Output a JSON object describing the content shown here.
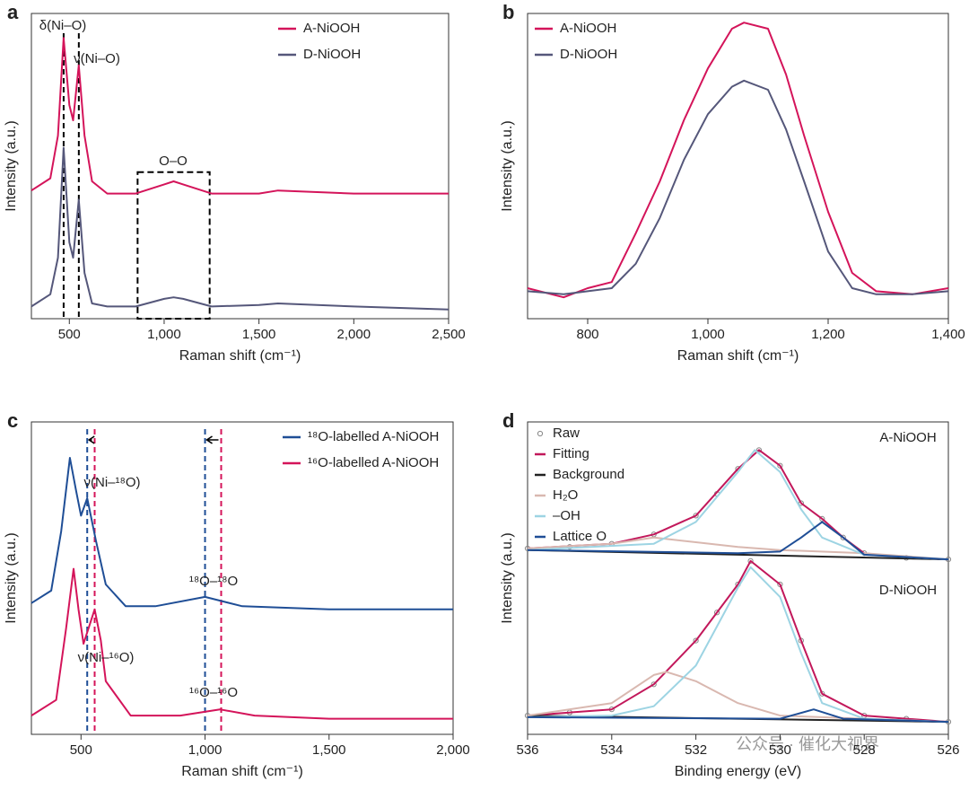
{
  "chart_data": [
    {
      "type": "line",
      "panel": "a",
      "x_label": "Raman shift (cm⁻¹)",
      "y_label": "Intensity (a.u.)",
      "xlim": [
        300,
        2500
      ],
      "xticks": [
        500,
        {
          "value": 1000,
          "label": "1,000"
        },
        {
          "value": 1500,
          "label": "1,500"
        },
        {
          "value": 2000,
          "label": "2,000"
        },
        {
          "value": 2500,
          "label": "2,500"
        }
      ],
      "ylim": [
        0,
        100
      ],
      "legend": "upper right",
      "annotations": [
        "δ(Ni–O)",
        "ν(Ni–O)",
        "O–O"
      ],
      "ref_lines": [
        {
          "x": 470,
          "color": "#000000"
        },
        {
          "x": 550,
          "color": "#000000"
        }
      ],
      "box_xlim": [
        860,
        1240
      ],
      "box_ylim": [
        0,
        48
      ],
      "series": [
        {
          "name": "A-NiOOH",
          "color": "#d4145a",
          "x": [
            300,
            400,
            440,
            470,
            500,
            520,
            550,
            580,
            620,
            700,
            850,
            1000,
            1050,
            1100,
            1250,
            1500,
            1600,
            2000,
            2500
          ],
          "values": [
            42,
            46,
            60,
            92,
            70,
            65,
            83,
            60,
            45,
            41,
            41,
            44,
            45,
            44,
            41,
            41,
            42,
            41,
            41
          ]
        },
        {
          "name": "D-NiOOH",
          "color": "#55577a",
          "x": [
            300,
            400,
            440,
            470,
            500,
            520,
            550,
            580,
            620,
            700,
            850,
            1000,
            1050,
            1100,
            1250,
            1500,
            1600,
            2000,
            2500
          ],
          "values": [
            4,
            8,
            20,
            56,
            25,
            20,
            39,
            15,
            5,
            4,
            4,
            6.5,
            7,
            6.5,
            4,
            4.5,
            5,
            4,
            3
          ]
        }
      ]
    },
    {
      "type": "line",
      "panel": "b",
      "x_label": "Raman shift (cm⁻¹)",
      "y_label": "Intensity (a.u.)",
      "xlim": [
        700,
        1400
      ],
      "xticks": [
        800,
        {
          "value": 1000,
          "label": "1,000"
        },
        {
          "value": 1200,
          "label": "1,200"
        },
        {
          "value": 1400,
          "label": "1,400"
        }
      ],
      "ylim": [
        0,
        100
      ],
      "legend": "upper left",
      "series": [
        {
          "name": "A-NiOOH",
          "color": "#d4145a",
          "x": [
            700,
            760,
            800,
            840,
            880,
            920,
            960,
            1000,
            1040,
            1060,
            1100,
            1130,
            1160,
            1200,
            1240,
            1280,
            1340,
            1400
          ],
          "values": [
            10,
            7,
            10,
            12,
            28,
            45,
            65,
            82,
            95,
            97,
            95,
            80,
            60,
            35,
            15,
            9,
            8,
            10
          ]
        },
        {
          "name": "D-NiOOH",
          "color": "#55577a",
          "x": [
            700,
            760,
            800,
            840,
            880,
            920,
            960,
            1000,
            1040,
            1060,
            1100,
            1130,
            1160,
            1200,
            1240,
            1280,
            1340,
            1400
          ],
          "values": [
            9,
            8,
            9,
            10,
            18,
            33,
            52,
            67,
            76,
            78,
            75,
            62,
            45,
            22,
            10,
            8,
            8,
            9
          ]
        }
      ]
    },
    {
      "type": "line",
      "panel": "c",
      "x_label": "Raman shift (cm⁻¹)",
      "y_label": "Intensity (a.u.)",
      "xlim": [
        300,
        2000
      ],
      "xticks": [
        500,
        {
          "value": 1000,
          "label": "1,000"
        },
        {
          "value": 1500,
          "label": "1,500"
        },
        {
          "value": 2000,
          "label": "2,000"
        }
      ],
      "ylim": [
        0,
        100
      ],
      "legend": "upper right",
      "annotations": [
        "ν(Ni–¹⁸O)",
        "¹⁸O–¹⁸O",
        "ν(Ni–¹⁶O)",
        "¹⁶O–¹⁶O"
      ],
      "ref_lines": [
        {
          "x": 525,
          "color": "#1f4e96"
        },
        {
          "x": 555,
          "color": "#d4145a"
        },
        {
          "x": 1000,
          "color": "#1f4e96"
        },
        {
          "x": 1065,
          "color": "#d4145a"
        }
      ],
      "series": [
        {
          "name": "¹⁸O-labelled A-NiOOH",
          "color": "#1f4e96",
          "x": [
            300,
            380,
            420,
            455,
            480,
            500,
            525,
            560,
            600,
            680,
            800,
            1000,
            1150,
            1500,
            2000
          ],
          "values": [
            42,
            46,
            65,
            88.5,
            78,
            70,
            75.6,
            62,
            48,
            41,
            41,
            44,
            41,
            40,
            40
          ]
        },
        {
          "name": "¹⁶O-labelled A-NiOOH",
          "color": "#d4145a",
          "x": [
            300,
            400,
            440,
            470,
            490,
            510,
            555,
            580,
            600,
            700,
            900,
            1060,
            1200,
            1500,
            2000
          ],
          "values": [
            6,
            11,
            34,
            53,
            40,
            29,
            40,
            30,
            17,
            6,
            6,
            8,
            6,
            5,
            5
          ]
        }
      ]
    },
    {
      "type": "line",
      "panel": "d",
      "x_label": "Binding energy (eV)",
      "y_label": "Intensity (a.u.)",
      "xlim": [
        536,
        526
      ],
      "xticks": [
        536,
        534,
        532,
        530,
        528,
        526
      ],
      "ylim": [
        0,
        100
      ],
      "legend": "upper left",
      "annotations": [
        "A-NiOOH",
        "D-NiOOH"
      ],
      "series": [
        {
          "name": "Raw",
          "color": "#888888",
          "style": "markers",
          "x": [
            536,
            535,
            534,
            533,
            532,
            531.5,
            531,
            530.5,
            530,
            529.5,
            529,
            528.5,
            528,
            527,
            526,
            536,
            535,
            534,
            533,
            532,
            531.5,
            531,
            530.7,
            530,
            529.5,
            529,
            528,
            527,
            526
          ],
          "values": [
            59.5,
            60,
            61,
            64,
            70,
            77,
            85,
            91,
            86,
            74,
            69,
            63,
            58,
            56.5,
            56,
            6,
            7,
            8,
            16,
            30,
            39,
            48,
            55.5,
            48,
            30,
            13,
            6,
            5,
            4
          ]
        },
        {
          "name": "Fitting",
          "color": "#c2185b",
          "x": [
            536,
            534,
            533,
            532,
            531,
            530.5,
            530,
            529.5,
            529,
            528.5,
            528,
            527,
            526,
            null,
            536,
            534,
            533,
            532,
            531,
            530.7,
            530,
            529.5,
            529,
            528,
            527,
            526
          ],
          "values": [
            59.5,
            61,
            64,
            70,
            85,
            91,
            86,
            74,
            69,
            63,
            58,
            56.5,
            56,
            null,
            6,
            8,
            16,
            30,
            48,
            55.5,
            48,
            30,
            13,
            6,
            5,
            4
          ]
        },
        {
          "name": "Background",
          "color": "#222222",
          "x": [
            536,
            526,
            null,
            536,
            526
          ],
          "values": [
            59,
            56,
            null,
            6,
            4
          ]
        },
        {
          "name": "H₂O",
          "color": "#d9b8b0",
          "x": [
            536,
            534,
            533,
            532,
            531,
            530,
            528,
            526,
            null,
            536,
            534,
            533,
            532.7,
            532,
            531,
            530,
            526
          ],
          "values": [
            59.5,
            61,
            63,
            61.5,
            60,
            59,
            58,
            56,
            null,
            6,
            10,
            19,
            20,
            17,
            10,
            6,
            4
          ]
        },
        {
          "name": "–OH",
          "color": "#9dd4e3",
          "x": [
            536,
            533,
            532,
            531,
            530.6,
            530,
            529.5,
            529,
            528,
            526,
            null,
            536,
            534,
            533,
            532,
            531,
            530.7,
            530,
            529.5,
            529,
            528,
            526
          ],
          "values": [
            59,
            61,
            68,
            84,
            91,
            84,
            72,
            63,
            57.5,
            56,
            null,
            5.5,
            6,
            9,
            22,
            47,
            53.5,
            44,
            26,
            10,
            5,
            4
          ]
        },
        {
          "name": "Lattice O",
          "color": "#1f4e96",
          "x": [
            536,
            531,
            530,
            529.5,
            529,
            528.5,
            528,
            526,
            null,
            536,
            530,
            529.2,
            528.5,
            526
          ],
          "values": [
            59,
            58,
            58.5,
            63,
            68,
            63,
            57.5,
            56,
            null,
            5.5,
            5,
            8,
            5,
            4
          ]
        }
      ]
    }
  ],
  "watermark": "公众号 · 催化大视界"
}
